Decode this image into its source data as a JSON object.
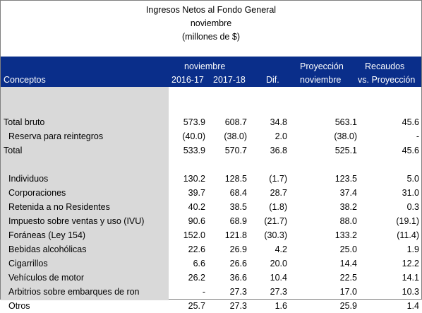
{
  "title": {
    "line1": "Ingresos Netos al Fondo General",
    "line2": "noviembre",
    "line3": "(millones de $)"
  },
  "header": {
    "group_label": "noviembre",
    "conceptos": "Conceptos",
    "year1": "2016-17",
    "year2": "2017-18",
    "dif": "Dif.",
    "proyeccion_1": "Proyección",
    "proyeccion_2": "noviembre",
    "recaudos_1": "Recaudos",
    "recaudos_2": "vs. Proyección"
  },
  "colors": {
    "header_bg": "#0a2e8a",
    "header_text": "#ffffff",
    "label_column_bg": "#d9d9d9"
  },
  "rows": [
    {
      "type": "blank"
    },
    {
      "type": "data",
      "level": 0,
      "label": "Total bruto",
      "v1": "573.9",
      "v2": "608.7",
      "dif": "34.8",
      "proy": "563.1",
      "rec": "45.6"
    },
    {
      "type": "data",
      "level": 1,
      "label": "Reserva para reintegros",
      "v1": "(40.0)",
      "v2": "(38.0)",
      "dif": "2.0",
      "proy": "(38.0)",
      "rec": "-"
    },
    {
      "type": "data",
      "level": 0,
      "label": "Total",
      "v1": "533.9",
      "v2": "570.7",
      "dif": "36.8",
      "proy": "525.1",
      "rec": "45.6"
    },
    {
      "type": "blank"
    },
    {
      "type": "data",
      "level": 2,
      "label": "Individuos",
      "v1": "130.2",
      "v2": "128.5",
      "dif": "(1.7)",
      "proy": "123.5",
      "rec": "5.0"
    },
    {
      "type": "data",
      "level": 2,
      "label": "Corporaciones",
      "v1": "39.7",
      "v2": "68.4",
      "dif": "28.7",
      "proy": "37.4",
      "rec": "31.0"
    },
    {
      "type": "data",
      "level": 2,
      "label": "Retenida a no Residentes",
      "v1": "40.2",
      "v2": "38.5",
      "dif": "(1.8)",
      "proy": "38.2",
      "rec": "0.3"
    },
    {
      "type": "data",
      "level": 2,
      "label": "Impuesto sobre ventas y uso (IVU)",
      "v1": "90.6",
      "v2": "68.9",
      "dif": "(21.7)",
      "proy": "88.0",
      "rec": "(19.1)"
    },
    {
      "type": "data",
      "level": 2,
      "label": "Foráneas (Ley 154)",
      "v1": "152.0",
      "v2": "121.8",
      "dif": "(30.3)",
      "proy": "133.2",
      "rec": "(11.4)"
    },
    {
      "type": "data",
      "level": 2,
      "label": "Bebidas alcohólicas",
      "v1": "22.6",
      "v2": "26.9",
      "dif": "4.2",
      "proy": "25.0",
      "rec": "1.9"
    },
    {
      "type": "data",
      "level": 2,
      "label": "Cigarrillos",
      "v1": "6.6",
      "v2": "26.6",
      "dif": "20.0",
      "proy": "14.4",
      "rec": "12.2"
    },
    {
      "type": "data",
      "level": 2,
      "label": "Vehículos de motor",
      "v1": "26.2",
      "v2": "36.6",
      "dif": "10.4",
      "proy": "22.5",
      "rec": "14.1"
    },
    {
      "type": "data",
      "level": 2,
      "label": "Arbitrios sobre embarques de ron",
      "v1": "-",
      "v2": "27.3",
      "dif": "27.3",
      "proy": "17.0",
      "rec": "10.3"
    },
    {
      "type": "data",
      "level": 2,
      "label": "Otros",
      "v1": "25.7",
      "v2": "27.3",
      "dif": "1.6",
      "proy": "25.9",
      "rec": "1.4"
    }
  ]
}
